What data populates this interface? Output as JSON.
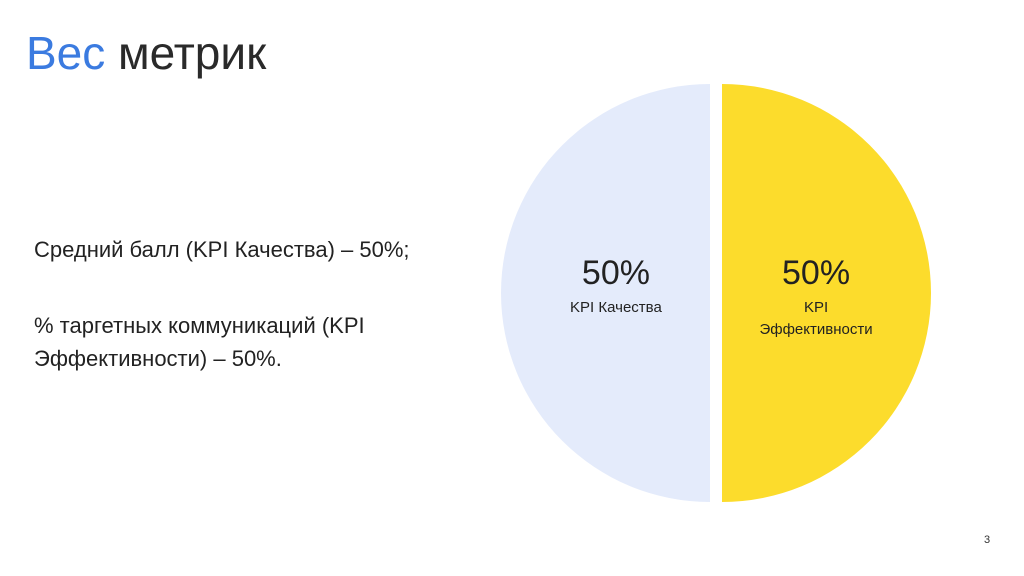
{
  "slide": {
    "title_accent": "Вес",
    "title_rest": "метрик",
    "paragraphs": [
      "Средний балл (KPI Качества) – 50%;",
      "% таргетных коммуникаций (KPI Эффективности) – 50%."
    ],
    "page_number": "3"
  },
  "chart_data": {
    "type": "pie",
    "categories": [
      "KPI Качества",
      "KPI Эффективности"
    ],
    "values": [
      50,
      50
    ],
    "value_labels": [
      "50%",
      "50%"
    ],
    "colors": [
      "#e4ebfb",
      "#fcdc2c"
    ]
  }
}
